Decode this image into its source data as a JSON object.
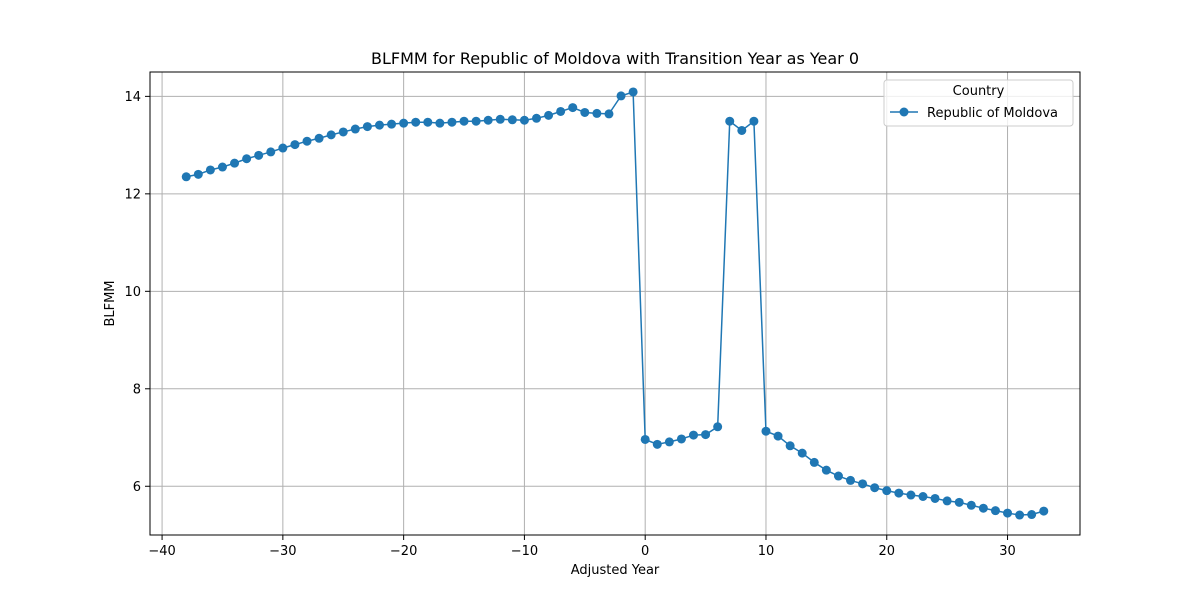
{
  "chart_data": {
    "type": "line",
    "title": "BLFMM for Republic of Moldova with Transition Year as Year 0",
    "xlabel": "Adjusted Year",
    "ylabel": "BLFMM",
    "xlim": [
      -41,
      36
    ],
    "ylim": [
      5.0,
      14.5
    ],
    "xticks": [
      -40,
      -30,
      -20,
      -10,
      0,
      10,
      20,
      30
    ],
    "yticks": [
      6,
      8,
      10,
      12,
      14
    ],
    "grid": true,
    "legend": {
      "title": "Country",
      "placement": "top-right"
    },
    "marker": "circle",
    "series": [
      {
        "name": "Republic of Moldova",
        "color": "#1f77b4",
        "x": [
          -38,
          -37,
          -36,
          -35,
          -34,
          -33,
          -32,
          -31,
          -30,
          -29,
          -28,
          -27,
          -26,
          -25,
          -24,
          -23,
          -22,
          -21,
          -20,
          -19,
          -18,
          -17,
          -16,
          -15,
          -14,
          -13,
          -12,
          -11,
          -10,
          -9,
          -8,
          -7,
          -6,
          -5,
          -4,
          -3,
          -2,
          -1,
          0,
          1,
          2,
          3,
          4,
          5,
          6,
          7,
          8,
          9,
          10,
          11,
          12,
          13,
          14,
          15,
          16,
          17,
          18,
          19,
          20,
          21,
          22,
          23,
          24,
          25,
          26,
          27,
          28,
          29,
          30,
          31,
          32,
          33
        ],
        "y": [
          12.35,
          12.4,
          12.49,
          12.55,
          12.63,
          12.72,
          12.79,
          12.86,
          12.94,
          13.01,
          13.08,
          13.14,
          13.21,
          13.27,
          13.33,
          13.38,
          13.41,
          13.43,
          13.45,
          13.47,
          13.47,
          13.45,
          13.47,
          13.49,
          13.49,
          13.51,
          13.53,
          13.52,
          13.51,
          13.55,
          13.61,
          13.69,
          13.77,
          13.67,
          13.65,
          13.64,
          14.01,
          14.09,
          6.96,
          6.86,
          6.91,
          6.97,
          7.05,
          7.06,
          7.22,
          13.49,
          13.3,
          13.49,
          7.13,
          7.03,
          6.83,
          6.68,
          6.49,
          6.33,
          6.21,
          6.12,
          6.05,
          5.97,
          5.91,
          5.86,
          5.82,
          5.79,
          5.75,
          5.7,
          5.67,
          5.61,
          5.55,
          5.5,
          5.45,
          5.41,
          5.42,
          5.49
        ]
      }
    ]
  }
}
